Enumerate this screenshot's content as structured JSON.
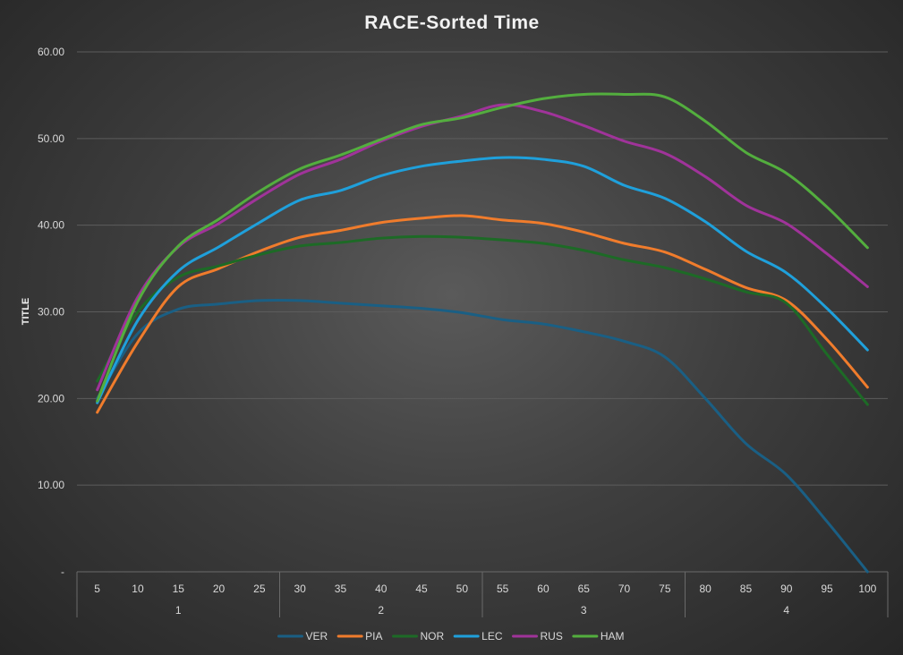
{
  "chart_data": {
    "type": "line",
    "title": "RACE-Sorted Time",
    "ylabel": "TITLE",
    "xlabel": "",
    "ylim": [
      0,
      60
    ],
    "yticks": [
      "-",
      "10.00",
      "20.00",
      "30.00",
      "40.00",
      "50.00",
      "60.00"
    ],
    "x": [
      "5",
      "10",
      "15",
      "20",
      "25",
      "30",
      "35",
      "40",
      "45",
      "50",
      "55",
      "60",
      "65",
      "70",
      "75",
      "80",
      "85",
      "90",
      "95",
      "100"
    ],
    "groups": [
      {
        "label": "1",
        "count": 5
      },
      {
        "label": "2",
        "count": 5
      },
      {
        "label": "3",
        "count": 5
      },
      {
        "label": "4",
        "count": 5
      }
    ],
    "grid": true,
    "legend_position": "bottom",
    "series": [
      {
        "name": "VER",
        "color": "#1a5f84",
        "values": [
          20.0,
          27.5,
          30.3,
          30.9,
          31.3,
          31.3,
          31.0,
          30.7,
          30.4,
          29.9,
          29.1,
          28.6,
          27.7,
          26.6,
          24.8,
          20.0,
          14.8,
          11.2,
          5.8,
          0.0
        ]
      },
      {
        "name": "PIA",
        "color": "#f07c2c",
        "values": [
          18.4,
          26.5,
          32.9,
          35.0,
          37.0,
          38.6,
          39.4,
          40.3,
          40.8,
          41.1,
          40.6,
          40.2,
          39.2,
          37.9,
          36.9,
          34.9,
          32.8,
          31.3,
          26.8,
          21.3
        ]
      },
      {
        "name": "NOR",
        "color": "#1d6a26",
        "values": [
          22.0,
          30.0,
          34.0,
          35.3,
          36.6,
          37.6,
          38.0,
          38.5,
          38.7,
          38.6,
          38.3,
          37.9,
          37.1,
          36.0,
          35.1,
          33.8,
          32.3,
          31.0,
          25.1,
          19.3
        ]
      },
      {
        "name": "LEC",
        "color": "#1fa0db",
        "values": [
          19.5,
          29.0,
          34.7,
          37.5,
          40.3,
          42.9,
          44.0,
          45.7,
          46.8,
          47.4,
          47.8,
          47.6,
          46.8,
          44.6,
          43.1,
          40.4,
          37.0,
          34.5,
          30.4,
          25.6
        ]
      },
      {
        "name": "RUS",
        "color": "#a0339a",
        "values": [
          21.0,
          31.7,
          37.5,
          40.2,
          43.2,
          45.9,
          47.6,
          49.7,
          51.4,
          52.6,
          53.9,
          53.1,
          51.5,
          49.7,
          48.3,
          45.6,
          42.3,
          40.2,
          36.7,
          32.9
        ]
      },
      {
        "name": "HAM",
        "color": "#53ae3e",
        "values": [
          19.7,
          31.2,
          37.6,
          40.7,
          43.9,
          46.5,
          48.1,
          49.9,
          51.6,
          52.4,
          53.6,
          54.6,
          55.1,
          55.1,
          54.8,
          52.0,
          48.4,
          46.0,
          42.1,
          37.4
        ]
      }
    ]
  }
}
